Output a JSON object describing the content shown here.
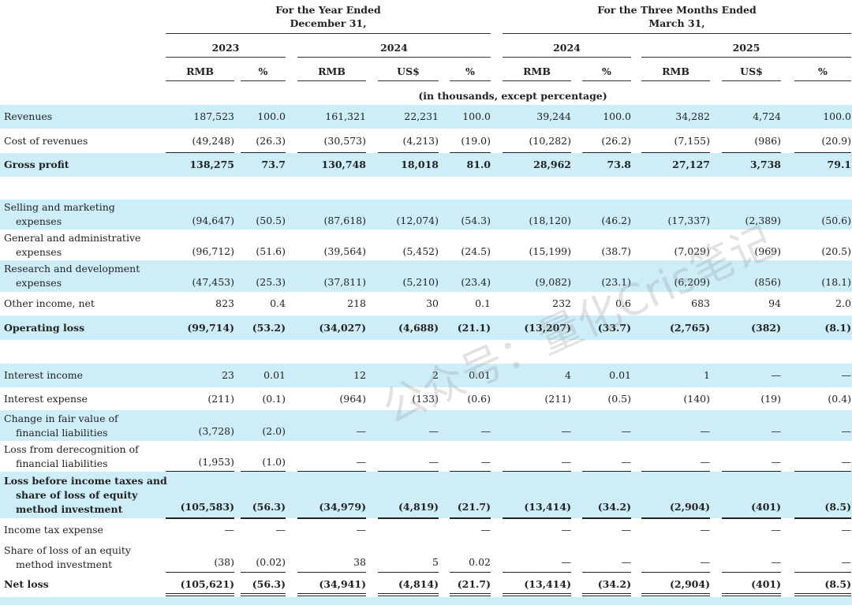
{
  "header": {
    "period_year": "For the Year Ended\nDecember 31,",
    "period_quarter": "For the Three Months Ended\nMarch 31,",
    "years": [
      "2023",
      "2024",
      "2024",
      "2025"
    ],
    "subheads": [
      "RMB",
      "%",
      "RMB",
      "US$",
      "%",
      "RMB",
      "%",
      "RMB",
      "US$",
      "%"
    ],
    "units_note": "(in thousands, except percentage)"
  },
  "rows": [
    {
      "label": "Revenues",
      "values": [
        "187,523",
        "100.0",
        "161,321",
        "22,231",
        "100.0",
        "39,244",
        "100.0",
        "34,282",
        "4,724",
        "100.0"
      ]
    },
    {
      "label": "Cost of revenues",
      "values": [
        "(49,248)",
        "(26.3)",
        "(30,573)",
        "(4,213)",
        "(19.0)",
        "(10,282)",
        "(26.2)",
        "(7,155)",
        "(986)",
        "(20.9)"
      ]
    },
    {
      "label": "Gross profit",
      "values": [
        "138,275",
        "73.7",
        "130,748",
        "18,018",
        "81.0",
        "28,962",
        "73.8",
        "27,127",
        "3,738",
        "79.1"
      ]
    },
    {
      "label": "Selling and marketing\nexpenses",
      "values": [
        "(94,647)",
        "(50.5)",
        "(87,618)",
        "(12,074)",
        "(54.3)",
        "(18,120)",
        "(46.2)",
        "(17,337)",
        "(2,389)",
        "(50.6)"
      ]
    },
    {
      "label": "General and administrative\nexpenses",
      "values": [
        "(96,712)",
        "(51.6)",
        "(39,564)",
        "(5,452)",
        "(24.5)",
        "(15,199)",
        "(38.7)",
        "(7,029)",
        "(969)",
        "(20.5)"
      ]
    },
    {
      "label": "Research and development\nexpenses",
      "values": [
        "(47,453)",
        "(25.3)",
        "(37,811)",
        "(5,210)",
        "(23.4)",
        "(9,082)",
        "(23.1)",
        "(6,209)",
        "(856)",
        "(18.1)"
      ]
    },
    {
      "label": "Other income, net",
      "values": [
        "823",
        "0.4",
        "218",
        "30",
        "0.1",
        "232",
        "0.6",
        "683",
        "94",
        "2.0"
      ]
    },
    {
      "label": "Operating loss",
      "values": [
        "(99,714)",
        "(53.2)",
        "(34,027)",
        "(4,688)",
        "(21.1)",
        "(13,207)",
        "(33.7)",
        "(2,765)",
        "(382)",
        "(8.1)"
      ]
    },
    {
      "label": "Interest income",
      "values": [
        "23",
        "0.01",
        "12",
        "2",
        "0.01",
        "4",
        "0.01",
        "1",
        "—",
        "—"
      ]
    },
    {
      "label": "Interest expense",
      "values": [
        "(211)",
        "(0.1)",
        "(964)",
        "(133)",
        "(0.6)",
        "(211)",
        "(0.5)",
        "(140)",
        "(19)",
        "(0.4)"
      ]
    },
    {
      "label": "Change in fair value of\nfinancial liabilities",
      "values": [
        "(3,728)",
        "(2.0)",
        "—",
        "—",
        "—",
        "—",
        "—",
        "—",
        "—",
        "—"
      ]
    },
    {
      "label": "Loss from derecognition of\nfinancial liabilities",
      "values": [
        "(1,953)",
        "(1.0)",
        "—",
        "—",
        "—",
        "—",
        "—",
        "—",
        "—",
        "—"
      ]
    },
    {
      "label": "Loss before income taxes and\nshare of loss of equity\nmethod investment",
      "values": [
        "(105,583)",
        "(56.3)",
        "(34,979)",
        "(4,819)",
        "(21.7)",
        "(13,414)",
        "(34.2)",
        "(2,904)",
        "(401)",
        "(8.5)"
      ]
    },
    {
      "label": "Income tax expense",
      "values": [
        "—",
        "—",
        "—",
        "",
        "—",
        "—",
        "—",
        "—",
        "—",
        "—"
      ]
    },
    {
      "label": "Share of loss of an equity\nmethod investment",
      "values": [
        "(38)",
        "(0.02)",
        "38",
        "5",
        "0.02",
        "—",
        "—",
        "—",
        "—",
        "—"
      ]
    },
    {
      "label": "Net loss",
      "values": [
        "(105,621)",
        "(56.3)",
        "(34,941)",
        "(4,814)",
        "(21.7)",
        "(13,414)",
        "(34.2)",
        "(2,904)",
        "(401)",
        "(8.5)"
      ]
    }
  ],
  "watermark": "公众号：量化Cris笔记"
}
